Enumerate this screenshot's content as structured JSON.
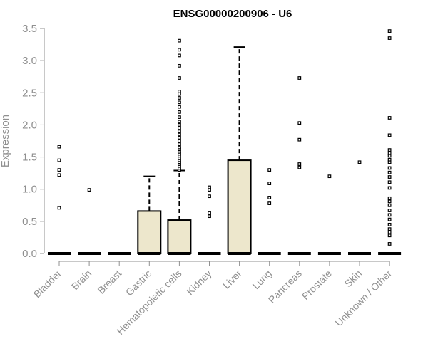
{
  "chart_data": {
    "type": "box",
    "title": "ENSG00000200906 - U6",
    "ylabel": "Expression",
    "xlabel": "",
    "ylim": [
      0,
      3.5
    ],
    "yticks": [
      "0.0",
      "0.5",
      "1.0",
      "1.5",
      "2.0",
      "2.5",
      "3.0",
      "3.5"
    ],
    "box_fill": "#ede7cc",
    "axis_color": "#909090",
    "categories": [
      "Bladder",
      "Brain",
      "Breast",
      "Gastric",
      "Hematopoietic cells",
      "Kidney",
      "Liver",
      "Lung",
      "Pancreas",
      "Prostate",
      "Skin",
      "Unknown / Other"
    ],
    "boxes": [
      {
        "category": "Bladder",
        "min": 0,
        "q1": 0,
        "median": 0,
        "q3": 0,
        "max": 0,
        "outliers": [
          0.71,
          1.22,
          1.3,
          1.45,
          1.66
        ]
      },
      {
        "category": "Brain",
        "min": 0,
        "q1": 0,
        "median": 0,
        "q3": 0,
        "max": 0,
        "outliers": [
          0.99
        ]
      },
      {
        "category": "Breast",
        "min": 0,
        "q1": 0,
        "median": 0,
        "q3": 0,
        "max": 0,
        "outliers": []
      },
      {
        "category": "Gastric",
        "min": 0,
        "q1": 0,
        "median": 0,
        "q3": 0.66,
        "max": 1.2,
        "outliers": []
      },
      {
        "category": "Hematopoietic cells",
        "min": 0,
        "q1": 0,
        "median": 0,
        "q3": 0.52,
        "max": 1.29,
        "outliers": [
          1.3,
          1.33,
          1.36,
          1.39,
          1.42,
          1.45,
          1.48,
          1.52,
          1.55,
          1.58,
          1.62,
          1.65,
          1.7,
          1.75,
          1.8,
          1.85,
          1.9,
          1.95,
          2.0,
          2.05,
          2.12,
          2.2,
          2.28,
          2.35,
          2.42,
          2.48,
          2.52,
          2.73,
          2.92,
          3.08,
          3.17,
          3.31
        ]
      },
      {
        "category": "Kidney",
        "min": 0,
        "q1": 0,
        "median": 0,
        "q3": 0,
        "max": 0,
        "outliers": [
          0.58,
          0.63,
          0.89,
          0.99,
          1.03
        ]
      },
      {
        "category": "Liver",
        "min": 0,
        "q1": 0,
        "median": 0,
        "q3": 1.45,
        "max": 3.21,
        "outliers": []
      },
      {
        "category": "Lung",
        "min": 0,
        "q1": 0,
        "median": 0,
        "q3": 0,
        "max": 0,
        "outliers": [
          0.78,
          0.87,
          1.09,
          1.3
        ]
      },
      {
        "category": "Pancreas",
        "min": 0,
        "q1": 0,
        "median": 0,
        "q3": 0,
        "max": 0,
        "outliers": [
          1.34,
          1.39,
          1.77,
          2.03,
          2.73
        ]
      },
      {
        "category": "Prostate",
        "min": 0,
        "q1": 0,
        "median": 0,
        "q3": 0,
        "max": 0,
        "outliers": [
          1.2
        ]
      },
      {
        "category": "Skin",
        "min": 0,
        "q1": 0,
        "median": 0,
        "q3": 0,
        "max": 0,
        "outliers": [
          1.42
        ]
      },
      {
        "category": "Unknown / Other",
        "min": 0,
        "q1": 0,
        "median": 0,
        "q3": 0,
        "max": 0,
        "outliers": [
          0.15,
          0.28,
          0.33,
          0.38,
          0.45,
          0.53,
          0.6,
          0.67,
          0.75,
          0.81,
          0.86,
          1.02,
          1.11,
          1.19,
          1.26,
          1.33,
          1.42,
          1.46,
          1.52,
          1.56,
          1.61,
          1.84,
          2.11,
          3.35,
          3.46
        ]
      }
    ]
  }
}
